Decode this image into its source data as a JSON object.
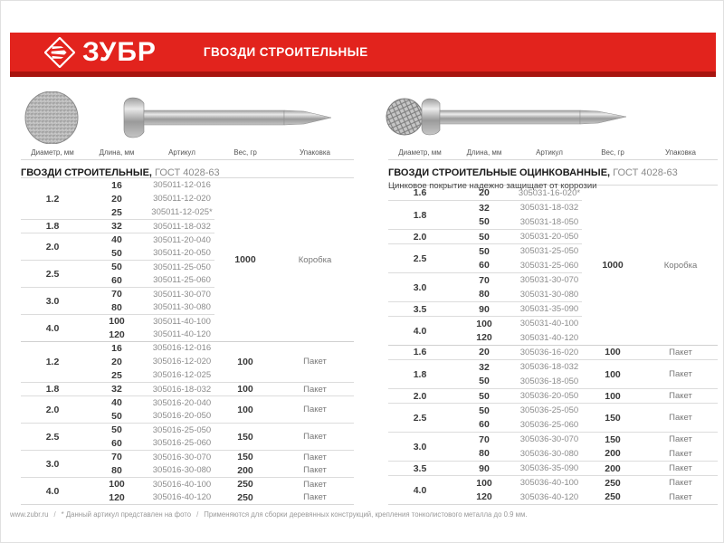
{
  "header": {
    "brand": "ЗУБР",
    "title": "ГВОЗДИ СТРОИТЕЛЬНЫЕ",
    "banner_color": "#e2231d",
    "banner_dark_strip": "#a8150f",
    "logo_icon": "zubr-diamond-arrows"
  },
  "columns": [
    "Диаметр, мм",
    "Длина, мм",
    "Артикул",
    "Вес, гр",
    "Упаковка"
  ],
  "tables": [
    {
      "title": "ГВОЗДИ СТРОИТЕЛЬНЫЕ,",
      "gost": " ГОСТ 4028-63",
      "subtitle": "",
      "nail_head_style": "speckled-round-head",
      "sections": [
        0,
        12
      ],
      "groups": [
        {
          "diameter": "1.2",
          "rows": [
            [
              "16",
              "305011-12-016"
            ],
            [
              "20",
              "305011-12-020"
            ],
            [
              "25",
              "305011-12-025*"
            ]
          ]
        },
        {
          "diameter": "1.8",
          "rows": [
            [
              "32",
              "305011-18-032"
            ]
          ]
        },
        {
          "diameter": "2.0",
          "rows": [
            [
              "40",
              "305011-20-040"
            ],
            [
              "50",
              "305011-20-050"
            ]
          ]
        },
        {
          "diameter": "2.5",
          "rows": [
            [
              "50",
              "305011-25-050"
            ],
            [
              "60",
              "305011-25-060"
            ]
          ]
        },
        {
          "diameter": "3.0",
          "rows": [
            [
              "70",
              "305011-30-070"
            ],
            [
              "80",
              "305011-30-080"
            ]
          ]
        },
        {
          "diameter": "4.0",
          "rows": [
            [
              "100",
              "305011-40-100"
            ],
            [
              "120",
              "305011-40-120"
            ]
          ]
        },
        {
          "diameter": "1.2",
          "rows": [
            [
              "16",
              "305016-12-016"
            ],
            [
              "20",
              "305016-12-020"
            ],
            [
              "25",
              "305016-12-025"
            ]
          ]
        },
        {
          "diameter": "1.8",
          "rows": [
            [
              "32",
              "305016-18-032"
            ]
          ]
        },
        {
          "diameter": "2.0",
          "rows": [
            [
              "40",
              "305016-20-040"
            ],
            [
              "50",
              "305016-20-050"
            ]
          ]
        },
        {
          "diameter": "2.5",
          "rows": [
            [
              "50",
              "305016-25-050"
            ],
            [
              "60",
              "305016-25-060"
            ]
          ]
        },
        {
          "diameter": "3.0",
          "rows": [
            [
              "70",
              "305016-30-070"
            ],
            [
              "80",
              "305016-30-080"
            ]
          ]
        },
        {
          "diameter": "4.0",
          "rows": [
            [
              "100",
              "305016-40-100"
            ],
            [
              "120",
              "305016-40-120"
            ]
          ]
        }
      ],
      "weights": [
        {
          "row": 0,
          "span": 12,
          "weight": "1000",
          "pack": "Коробка"
        },
        {
          "row": 12,
          "span": 3,
          "weight": "100",
          "pack": "Пакет"
        },
        {
          "row": 15,
          "span": 1,
          "weight": "100",
          "pack": "Пакет"
        },
        {
          "row": 16,
          "span": 2,
          "weight": "100",
          "pack": "Пакет"
        },
        {
          "row": 18,
          "span": 2,
          "weight": "150",
          "pack": "Пакет"
        },
        {
          "row": 20,
          "span": 1,
          "weight": "150",
          "pack": "Пакет"
        },
        {
          "row": 21,
          "span": 1,
          "weight": "200",
          "pack": "Пакет"
        },
        {
          "row": 22,
          "span": 1,
          "weight": "250",
          "pack": "Пакет"
        },
        {
          "row": 23,
          "span": 1,
          "weight": "250",
          "pack": "Пакет"
        }
      ]
    },
    {
      "title": "ГВОЗДИ СТРОИТЕЛЬНЫЕ ОЦИНКОВАННЫЕ,",
      "gost": " ГОСТ 4028-63",
      "subtitle": "Цинковое покрытие надежно защищает от коррозии",
      "nail_head_style": "waffle-round-head",
      "sections": [
        0,
        11
      ],
      "groups": [
        {
          "diameter": "1.6",
          "rows": [
            [
              "20",
              "305031-16-020*"
            ]
          ]
        },
        {
          "diameter": "1.8",
          "rows": [
            [
              "32",
              "305031-18-032"
            ],
            [
              "50",
              "305031-18-050"
            ]
          ]
        },
        {
          "diameter": "2.0",
          "rows": [
            [
              "50",
              "305031-20-050"
            ]
          ]
        },
        {
          "diameter": "2.5",
          "rows": [
            [
              "50",
              "305031-25-050"
            ],
            [
              "60",
              "305031-25-060"
            ]
          ]
        },
        {
          "diameter": "3.0",
          "rows": [
            [
              "70",
              "305031-30-070"
            ],
            [
              "80",
              "305031-30-080"
            ]
          ]
        },
        {
          "diameter": "3.5",
          "rows": [
            [
              "90",
              "305031-35-090"
            ]
          ]
        },
        {
          "diameter": "4.0",
          "rows": [
            [
              "100",
              "305031-40-100"
            ],
            [
              "120",
              "305031-40-120"
            ]
          ]
        },
        {
          "diameter": "1.6",
          "rows": [
            [
              "20",
              "305036-16-020"
            ]
          ]
        },
        {
          "diameter": "1.8",
          "rows": [
            [
              "32",
              "305036-18-032"
            ],
            [
              "50",
              "305036-18-050"
            ]
          ]
        },
        {
          "diameter": "2.0",
          "rows": [
            [
              "50",
              "305036-20-050"
            ]
          ]
        },
        {
          "diameter": "2.5",
          "rows": [
            [
              "50",
              "305036-25-050"
            ],
            [
              "60",
              "305036-25-060"
            ]
          ]
        },
        {
          "diameter": "3.0",
          "rows": [
            [
              "70",
              "305036-30-070"
            ],
            [
              "80",
              "305036-30-080"
            ]
          ]
        },
        {
          "diameter": "3.5",
          "rows": [
            [
              "90",
              "305036-35-090"
            ]
          ]
        },
        {
          "diameter": "4.0",
          "rows": [
            [
              "100",
              "305036-40-100"
            ],
            [
              "120",
              "305036-40-120"
            ]
          ]
        }
      ],
      "weights": [
        {
          "row": 0,
          "span": 11,
          "weight": "1000",
          "pack": "Коробка"
        },
        {
          "row": 11,
          "span": 1,
          "weight": "100",
          "pack": "Пакет"
        },
        {
          "row": 12,
          "span": 2,
          "weight": "100",
          "pack": "Пакет"
        },
        {
          "row": 14,
          "span": 1,
          "weight": "100",
          "pack": "Пакет"
        },
        {
          "row": 15,
          "span": 2,
          "weight": "150",
          "pack": "Пакет"
        },
        {
          "row": 17,
          "span": 1,
          "weight": "150",
          "pack": "Пакет"
        },
        {
          "row": 18,
          "span": 1,
          "weight": "200",
          "pack": "Пакет"
        },
        {
          "row": 19,
          "span": 1,
          "weight": "200",
          "pack": "Пакет"
        },
        {
          "row": 20,
          "span": 1,
          "weight": "250",
          "pack": "Пакет"
        },
        {
          "row": 21,
          "span": 1,
          "weight": "250",
          "pack": "Пакет"
        }
      ]
    }
  ],
  "footer": {
    "site": "www.zubr.ru",
    "separator": "/",
    "note_photo": "* Данный артикул представлен на фото",
    "note_usage": "Применяются для сборки деревянных конструкций, крепления тонколистового металла до 0.9 мм."
  }
}
